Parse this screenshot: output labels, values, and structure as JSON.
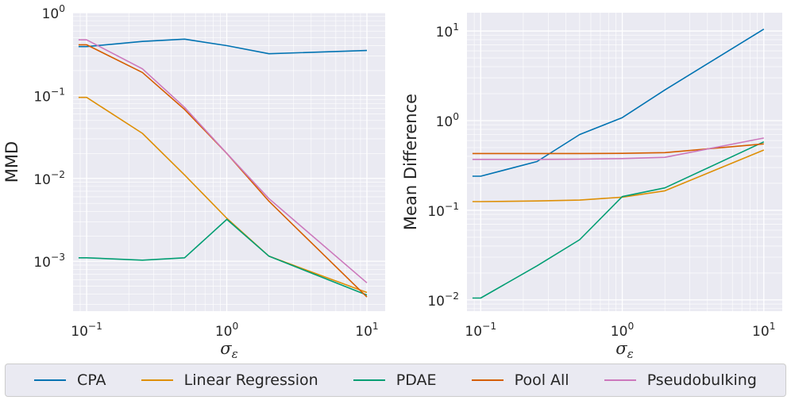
{
  "colors": {
    "CPA": "#0173b2",
    "Linear Regression": "#de8f05",
    "PDAE": "#029e73",
    "Pool All": "#d55e00",
    "Pseudobulking": "#cc78bc",
    "panel_bg": "#eaeaf2",
    "grid": "#ffffff",
    "text": "#262626"
  },
  "chart_data": [
    {
      "type": "line",
      "title": "",
      "xlabel": "σ_ε",
      "ylabel": "MMD",
      "xscale": "log",
      "yscale": "log",
      "xlim": [
        0.08,
        13.5
      ],
      "ylim": [
        0.00025,
        1.0
      ],
      "xticks": [
        0.1,
        1,
        10
      ],
      "xtick_labels": [
        [
          "10",
          "−1"
        ],
        [
          "10",
          "0"
        ],
        [
          "10",
          "1"
        ]
      ],
      "yticks": [
        0.001,
        0.01,
        0.1,
        1
      ],
      "ytick_labels": [
        [
          "10",
          "−3"
        ],
        [
          "10",
          "−2"
        ],
        [
          "10",
          "−1"
        ],
        [
          "10",
          "0"
        ]
      ],
      "x": [
        0.0875,
        0.1,
        0.25,
        0.5,
        1,
        2,
        10
      ],
      "series": [
        {
          "name": "CPA",
          "values": [
            0.39,
            0.39,
            0.45,
            0.48,
            0.4,
            0.32,
            0.35
          ]
        },
        {
          "name": "Linear Regression",
          "values": [
            0.095,
            0.095,
            0.035,
            0.011,
            0.0033,
            0.00115,
            0.00042
          ]
        },
        {
          "name": "PDAE",
          "values": [
            0.0011,
            0.0011,
            0.00103,
            0.0011,
            0.0032,
            0.00115,
            0.00039
          ]
        },
        {
          "name": "Pool All",
          "values": [
            0.41,
            0.41,
            0.19,
            0.068,
            0.02,
            0.0053,
            0.00037
          ]
        },
        {
          "name": "Pseudobulking",
          "values": [
            0.47,
            0.47,
            0.21,
            0.072,
            0.02,
            0.0057,
            0.00055
          ]
        }
      ]
    },
    {
      "type": "line",
      "title": "",
      "xlabel": "σ_ε",
      "ylabel": "Mean Difference",
      "xscale": "log",
      "yscale": "log",
      "xlim": [
        0.08,
        13.5
      ],
      "ylim": [
        0.0075,
        16
      ],
      "xticks": [
        0.1,
        1,
        10
      ],
      "xtick_labels": [
        [
          "10",
          "−1"
        ],
        [
          "10",
          "0"
        ],
        [
          "10",
          "1"
        ]
      ],
      "yticks": [
        0.01,
        0.1,
        1,
        10
      ],
      "ytick_labels": [
        [
          "10",
          "−2"
        ],
        [
          "10",
          "−1"
        ],
        [
          "10",
          "0"
        ],
        [
          "10",
          "1"
        ]
      ],
      "x": [
        0.0875,
        0.1,
        0.25,
        0.5,
        1,
        2,
        10
      ],
      "series": [
        {
          "name": "CPA",
          "values": [
            0.24,
            0.24,
            0.35,
            0.7,
            1.08,
            2.2,
            10.5
          ]
        },
        {
          "name": "Linear Regression",
          "values": [
            0.125,
            0.125,
            0.127,
            0.13,
            0.14,
            0.165,
            0.47
          ]
        },
        {
          "name": "PDAE",
          "values": [
            0.0105,
            0.0105,
            0.024,
            0.047,
            0.142,
            0.178,
            0.58
          ]
        },
        {
          "name": "Pool All",
          "values": [
            0.43,
            0.43,
            0.43,
            0.43,
            0.432,
            0.44,
            0.55
          ]
        },
        {
          "name": "Pseudobulking",
          "values": [
            0.37,
            0.37,
            0.37,
            0.372,
            0.377,
            0.39,
            0.64
          ]
        }
      ]
    }
  ],
  "legend": {
    "items": [
      {
        "label": "CPA"
      },
      {
        "label": "Linear Regression"
      },
      {
        "label": "PDAE"
      },
      {
        "label": "Pool All"
      },
      {
        "label": "Pseudobulking"
      }
    ]
  }
}
